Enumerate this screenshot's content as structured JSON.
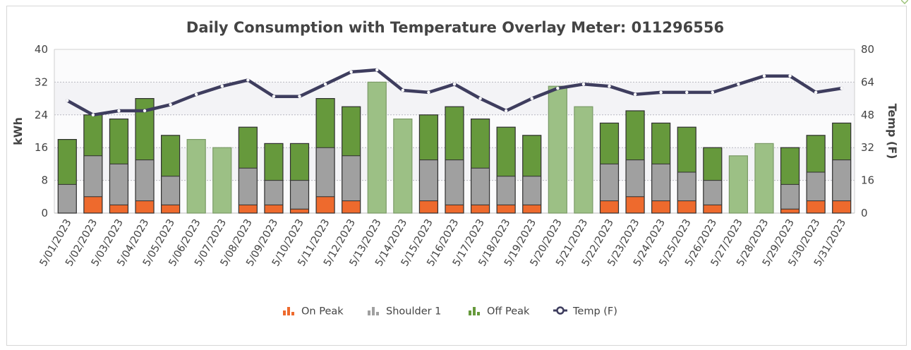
{
  "chart_data": {
    "type": "bar",
    "title": "Daily Consumption with Temperature Overlay Meter: 011296556",
    "ylabel": "kWh",
    "y2label": "Temp (F)",
    "ylim": [
      0,
      40
    ],
    "y2lim": [
      0,
      80
    ],
    "yticks": [
      0,
      8,
      16,
      24,
      32,
      40
    ],
    "y2ticks": [
      0,
      16,
      32,
      48,
      64,
      80
    ],
    "grid": true,
    "legend_position": "bottom-center",
    "categories": [
      "5/01/2023",
      "5/02/2023",
      "5/03/2023",
      "5/04/2023",
      "5/05/2023",
      "5/06/2023",
      "5/07/2023",
      "5/08/2023",
      "5/09/2023",
      "5/10/2023",
      "5/11/2023",
      "5/12/2023",
      "5/13/2023",
      "5/14/2023",
      "5/15/2023",
      "5/16/2023",
      "5/17/2023",
      "5/18/2023",
      "5/19/2023",
      "5/20/2023",
      "5/21/2023",
      "5/22/2023",
      "5/23/2023",
      "5/24/2023",
      "5/25/2023",
      "5/26/2023",
      "5/27/2023",
      "5/28/2023",
      "5/29/2023",
      "5/30/2023",
      "5/31/2023"
    ],
    "weekend_indices": [
      5,
      6,
      12,
      13,
      19,
      20,
      26,
      27
    ],
    "series": [
      {
        "name": "On Peak",
        "kind": "bar",
        "axis": "left",
        "color": "#ee6a2d",
        "values": [
          0,
          4,
          2,
          3,
          2,
          0,
          0,
          2,
          2,
          1,
          4,
          3,
          0,
          0,
          3,
          2,
          2,
          2,
          2,
          0,
          0,
          3,
          4,
          3,
          3,
          2,
          0,
          0,
          1,
          3,
          3
        ]
      },
      {
        "name": "Shoulder 1",
        "kind": "bar",
        "axis": "left",
        "color": "#a0a0a0",
        "values": [
          7,
          10,
          10,
          10,
          7,
          0,
          0,
          9,
          6,
          7,
          12,
          11,
          0,
          0,
          10,
          11,
          9,
          7,
          7,
          0,
          0,
          9,
          9,
          9,
          7,
          6,
          0,
          0,
          6,
          7,
          10
        ]
      },
      {
        "name": "Off Peak",
        "kind": "bar",
        "axis": "left",
        "color": "#66993c",
        "weekend_color": "#9cc085",
        "values": [
          11,
          10,
          11,
          15,
          10,
          18,
          16,
          10,
          9,
          9,
          12,
          12,
          32,
          23,
          11,
          13,
          12,
          12,
          10,
          31,
          26,
          10,
          12,
          10,
          11,
          8,
          14,
          17,
          9,
          9,
          9
        ]
      },
      {
        "name": "Temp (F)",
        "kind": "line",
        "axis": "right",
        "color": "#3e3d5e",
        "values": [
          55,
          48,
          50,
          50,
          53,
          58,
          62,
          65,
          57,
          57,
          63,
          69,
          70,
          60,
          59,
          63,
          56,
          50,
          56,
          61,
          63,
          62,
          58,
          59,
          59,
          59,
          63,
          67,
          67,
          59,
          61
        ]
      }
    ]
  }
}
